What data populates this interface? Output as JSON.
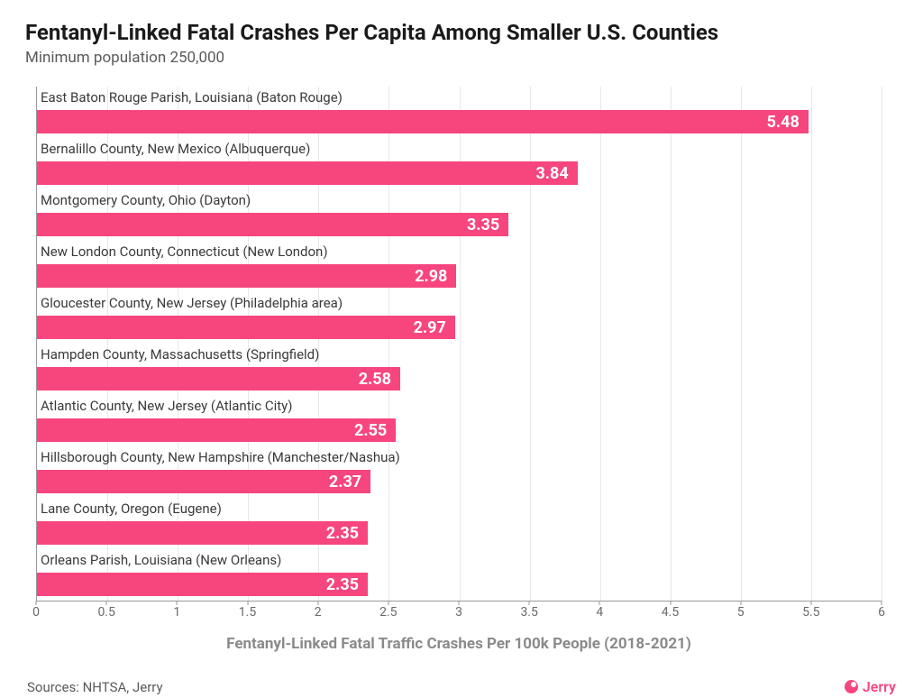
{
  "title": "Fentanyl-Linked Fatal Crashes Per Capita Among Smaller U.S. Counties",
  "subtitle": "Minimum population 250,000",
  "chart": {
    "type": "bar-horizontal",
    "bar_color": "#f7457e",
    "value_text_color": "#ffffff",
    "value_fontsize": 18,
    "value_fontweight": 700,
    "label_color": "#3a3a3a",
    "label_fontsize": 15,
    "grid_color": "#e8e8e8",
    "axis_color": "#999999",
    "background_color": "#ffffff",
    "x_axis_label": "Fentanyl-Linked Fatal Traffic Crashes Per 100k People (2018-2021)",
    "x_axis_label_color": "#8a8a8a",
    "x_axis_label_fontsize": 17,
    "xlim": [
      0,
      6
    ],
    "xtick_step": 0.5,
    "xticks": [
      "0",
      "0.5",
      "1",
      "1.5",
      "2",
      "2.5",
      "3",
      "3.5",
      "4",
      "4.5",
      "5",
      "5.5",
      "6"
    ],
    "rows": [
      {
        "label": "East Baton Rouge Parish, Louisiana (Baton Rouge)",
        "value": 5.48
      },
      {
        "label": "Bernalillo County, New Mexico (Albuquerque)",
        "value": 3.84
      },
      {
        "label": "Montgomery County, Ohio (Dayton)",
        "value": 3.35
      },
      {
        "label": "New London County, Connecticut (New London)",
        "value": 2.98
      },
      {
        "label": "Gloucester County, New Jersey (Philadelphia area)",
        "value": 2.97
      },
      {
        "label": "Hampden County, Massachusetts (Springfield)",
        "value": 2.58
      },
      {
        "label": "Atlantic County, New Jersey (Atlantic City)",
        "value": 2.55
      },
      {
        "label": "Hillsborough County, New Hampshire (Manchester/Nashua)",
        "value": 2.37
      },
      {
        "label": "Lane County, Oregon (Eugene)",
        "value": 2.35
      },
      {
        "label": "Orleans Parish, Louisiana (New Orleans)",
        "value": 2.35
      }
    ]
  },
  "sources": "Sources: NHTSA, Jerry",
  "brand": {
    "name": "Jerry",
    "color": "#f7457e"
  }
}
